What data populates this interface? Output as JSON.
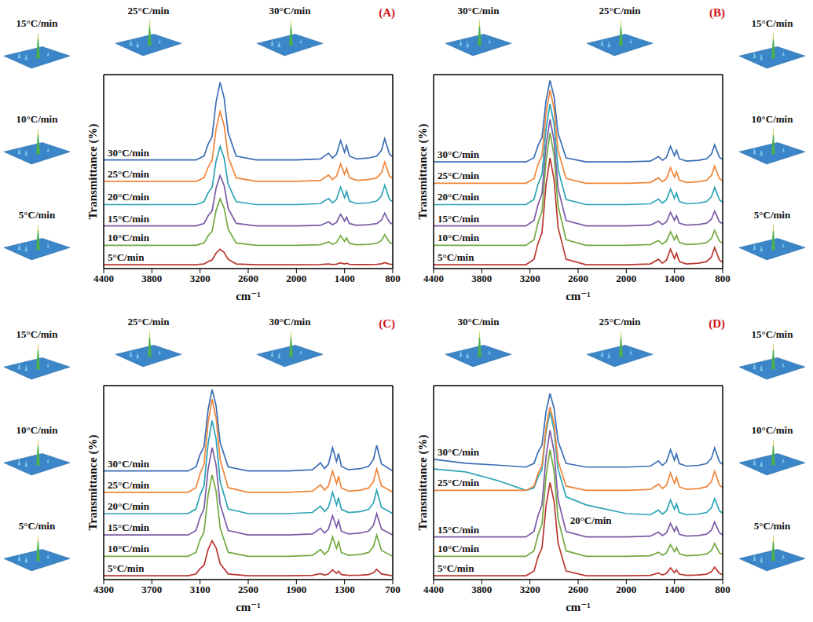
{
  "chart_data": [
    {
      "type": "line",
      "title": "(A)",
      "x_label": "cm⁻¹",
      "y_label": "Transmittance (%)",
      "x": [
        4400,
        4000,
        3600,
        3250,
        3150,
        3100,
        3050,
        3000,
        2950,
        2900,
        2850,
        2750,
        2500,
        2000,
        1700,
        1600,
        1550,
        1500,
        1450,
        1400,
        1375,
        1340,
        1250,
        1100,
        1000,
        940,
        900,
        870,
        840,
        800
      ],
      "xlim": [
        4400,
        800
      ],
      "xticks": [
        4400,
        3800,
        3200,
        2600,
        2000,
        1400,
        800
      ],
      "ylim": [
        0,
        100
      ],
      "tick_labels": "x",
      "series": [
        {
          "name": "5°C/min",
          "color": "#b8372f",
          "values": [
            2,
            2,
            2,
            2,
            2.4,
            3.6,
            4.4,
            8,
            10,
            8.4,
            4.8,
            2.4,
            2,
            2,
            2.1,
            2.4,
            2.1,
            2.3,
            3,
            2.4,
            2.8,
            2.2,
            2.1,
            2.1,
            2.2,
            2.5,
            3.1,
            2.7,
            2.3,
            2.2
          ]
        },
        {
          "name": "10°C/min",
          "color": "#72a93f",
          "values": [
            12,
            12,
            12,
            12,
            13.2,
            16.8,
            19.2,
            30,
            36,
            31.2,
            20.4,
            13.2,
            12,
            12,
            12.3,
            13.8,
            12.5,
            13.5,
            17,
            14,
            15.8,
            13,
            12.3,
            12.5,
            13,
            14.5,
            17.5,
            15.5,
            13.5,
            12.8
          ]
        },
        {
          "name": "15°C/min",
          "color": "#7b5aa6",
          "values": [
            22,
            22,
            22,
            22,
            23.3,
            27.2,
            29.8,
            41.5,
            48,
            42.8,
            31.1,
            23.3,
            22,
            22,
            22.3,
            24.1,
            22.6,
            23.8,
            28,
            24.4,
            26.5,
            23.2,
            22.3,
            22.6,
            23.2,
            25,
            28.6,
            26.2,
            23.8,
            22.9
          ]
        },
        {
          "name": "20°C/min",
          "color": "#2ba3b5",
          "values": [
            33,
            33,
            33,
            33,
            34.5,
            39,
            42,
            55.5,
            63,
            57,
            43.5,
            34.5,
            33,
            33,
            33.5,
            36.2,
            33.9,
            35.7,
            42,
            36.6,
            39.8,
            34.8,
            33.5,
            33.9,
            34.8,
            37.5,
            42.9,
            39.3,
            35.7,
            34.4
          ]
        },
        {
          "name": "25°C/min",
          "color": "#f0863a",
          "values": [
            45,
            45,
            45,
            45,
            46.8,
            52.2,
            55.8,
            72,
            81,
            73.8,
            57.6,
            46.8,
            45,
            45,
            45.5,
            48.2,
            45.9,
            47.7,
            54,
            48.6,
            51.8,
            46.8,
            45.5,
            45.9,
            46.8,
            49.5,
            54.9,
            51.3,
            47.7,
            46.4
          ]
        },
        {
          "name": "30°C/min",
          "color": "#3b6eb5",
          "values": [
            56,
            56,
            56,
            56,
            58,
            64,
            68,
            86,
            96,
            88,
            70,
            58,
            56,
            56,
            56.5,
            59.5,
            57,
            59,
            66,
            60,
            63.5,
            58,
            56.5,
            57,
            58,
            61,
            67,
            63,
            59,
            57.5
          ]
        }
      ],
      "annotations": {
        "insets": [
          "25°C/min",
          "30°C/min"
        ],
        "side_insets": [
          "15°C/min",
          "10°C/min",
          "5°C/min"
        ]
      }
    },
    {
      "type": "line",
      "title": "(B)",
      "x_label": "cm⁻¹",
      "y_label": "Transmittance (%)",
      "x": [
        4400,
        4000,
        3600,
        3250,
        3150,
        3100,
        3050,
        3000,
        2950,
        2900,
        2850,
        2750,
        2500,
        2000,
        1700,
        1600,
        1550,
        1500,
        1450,
        1400,
        1375,
        1340,
        1250,
        1100,
        1000,
        940,
        900,
        870,
        840,
        800
      ],
      "xlim": [
        4400,
        800
      ],
      "xticks": [
        4400,
        3800,
        3200,
        2600,
        2000,
        1400,
        800
      ],
      "ylim": [
        0,
        100
      ],
      "tick_labels": "x",
      "series": [
        {
          "name": "5°C/min",
          "color": "#b8372f",
          "values": [
            2,
            2,
            2,
            2,
            4.8,
            13,
            18.5,
            43.3,
            57,
            46,
            21.3,
            4.8,
            2,
            2,
            2.4,
            4.8,
            2.8,
            4.4,
            10,
            5.2,
            8,
            3.6,
            2.4,
            2.8,
            3.6,
            6,
            10.8,
            7.6,
            4.4,
            3.2
          ]
        },
        {
          "name": "10°C/min",
          "color": "#72a93f",
          "values": [
            12,
            12,
            12,
            12,
            14.9,
            23.6,
            29.4,
            55.5,
            70,
            58.4,
            32.3,
            14.9,
            12,
            12,
            12.4,
            14.5,
            12.7,
            14.1,
            19,
            14.8,
            17.3,
            13.4,
            12.4,
            12.7,
            13.4,
            15.5,
            19.7,
            16.9,
            14.1,
            13.1
          ]
        },
        {
          "name": "15°C/min",
          "color": "#7b5aa6",
          "values": [
            22,
            22,
            22,
            22,
            24.8,
            33,
            38.5,
            63.3,
            77,
            66,
            41.3,
            24.8,
            22,
            22,
            22.4,
            24.5,
            22.7,
            24.1,
            29,
            24.8,
            27.3,
            23.4,
            22.4,
            22.7,
            23.4,
            25.5,
            29.7,
            26.9,
            24.1,
            23.1
          ]
        },
        {
          "name": "20°C/min",
          "color": "#2ba3b5",
          "values": [
            33,
            33,
            33,
            33,
            35.6,
            43.4,
            48.6,
            72,
            85,
            74.6,
            51.2,
            35.6,
            33,
            33,
            33.4,
            35.8,
            33.8,
            35.4,
            41,
            36.2,
            39,
            34.6,
            33.4,
            33.8,
            34.6,
            37,
            41.8,
            38.6,
            35.4,
            34.2
          ]
        },
        {
          "name": "25°C/min",
          "color": "#f0863a",
          "values": [
            44,
            44,
            44,
            44,
            46.4,
            53.6,
            58.4,
            80,
            92,
            82.4,
            60.8,
            46.4,
            44,
            44,
            44.4,
            46.8,
            44.8,
            46.4,
            52,
            47.2,
            50,
            45.6,
            44.4,
            44.8,
            45.6,
            48,
            52.8,
            49.6,
            46.4,
            45.2
          ]
        },
        {
          "name": "30°C/min",
          "color": "#3b6eb5",
          "values": [
            55,
            55,
            55,
            55,
            57.1,
            63.4,
            67.6,
            86.5,
            97,
            88.6,
            69.7,
            57.1,
            55,
            55,
            55.4,
            57.8,
            55.8,
            57.4,
            63,
            58.2,
            61,
            56.6,
            55.4,
            55.8,
            56.6,
            59,
            63.8,
            60.6,
            57.4,
            56.2
          ]
        }
      ],
      "annotations": {
        "insets": [
          "30°C/min",
          "25°C/min"
        ],
        "side_insets": [
          "15°C/min",
          "10°C/min",
          "5°C/min"
        ]
      }
    },
    {
      "type": "line",
      "title": "(C)",
      "x_label": "cm⁻¹",
      "y_label": "Transmittance (%)",
      "x": [
        4300,
        4000,
        3600,
        3250,
        3150,
        3100,
        3050,
        3000,
        2950,
        2900,
        2850,
        2750,
        2500,
        2000,
        1700,
        1600,
        1550,
        1500,
        1450,
        1400,
        1375,
        1340,
        1250,
        1100,
        1000,
        940,
        900,
        870,
        840,
        700
      ],
      "xlim": [
        4300,
        700
      ],
      "xticks": [
        4300,
        3700,
        3100,
        2500,
        1900,
        1300,
        700
      ],
      "ylim": [
        0,
        100
      ],
      "tick_labels": "x",
      "series": [
        {
          "name": "5°C/min",
          "color": "#b8372f",
          "values": [
            2,
            2,
            2,
            2,
            2.9,
            5.6,
            7.4,
            15.5,
            20,
            16.4,
            8.3,
            2.9,
            2,
            2,
            2.2,
            3.1,
            2.3,
            2.9,
            5,
            3.2,
            4.3,
            2.6,
            2.2,
            2.3,
            2.6,
            3.5,
            5.3,
            4.1,
            2.9,
            2
          ]
        },
        {
          "name": "10°C/min",
          "color": "#72a93f",
          "values": [
            12,
            12,
            12,
            12,
            14.1,
            20.4,
            24.6,
            43.5,
            54,
            45.6,
            26.7,
            14.1,
            12,
            12,
            12.5,
            15.5,
            13,
            15,
            22,
            16,
            19.5,
            14,
            12.5,
            13,
            14,
            17,
            23,
            19,
            15,
            12
          ]
        },
        {
          "name": "15°C/min",
          "color": "#7b5aa6",
          "values": [
            23,
            23,
            23,
            23,
            25.3,
            32,
            36.5,
            56.8,
            68,
            59,
            38.8,
            25.3,
            23,
            23,
            23.5,
            26.5,
            24,
            26,
            33,
            27,
            30.5,
            25,
            23.5,
            24,
            25,
            28,
            34,
            30,
            26,
            23
          ]
        },
        {
          "name": "20°C/min",
          "color": "#2ba3b5",
          "values": [
            34,
            34,
            34,
            34,
            36.4,
            43.6,
            48.4,
            70,
            82,
            72.4,
            50.8,
            36.4,
            34,
            34,
            34.6,
            37.9,
            35.1,
            37.3,
            45,
            38.4,
            42.3,
            36.2,
            34.6,
            35.1,
            36.2,
            39.5,
            46.1,
            41.7,
            37.3,
            34
          ]
        },
        {
          "name": "25°C/min",
          "color": "#f0863a",
          "values": [
            45,
            45,
            45,
            45,
            47.4,
            54.6,
            59.4,
            81,
            93,
            83.4,
            61.8,
            47.4,
            45,
            45,
            45.6,
            48.9,
            46.1,
            48.3,
            56,
            49.4,
            53.3,
            47.2,
            45.6,
            46.1,
            47.2,
            50.5,
            57.1,
            52.7,
            48.3,
            45
          ]
        },
        {
          "name": "30°C/min",
          "color": "#3b6eb5",
          "values": [
            56,
            56,
            56,
            56,
            58.1,
            64.4,
            68.6,
            87.5,
            98,
            89.6,
            70.7,
            58.1,
            56,
            56,
            56.6,
            60.2,
            57.2,
            59.6,
            68,
            60.8,
            65,
            58.4,
            56.6,
            57.2,
            58.4,
            62,
            69.2,
            64.4,
            59.6,
            56
          ]
        }
      ],
      "annotations": {
        "insets": [
          "25°C/min",
          "30°C/min"
        ],
        "side_insets": [
          "15°C/min",
          "10°C/min",
          "5°C/min"
        ]
      }
    },
    {
      "type": "line",
      "title": "(D)",
      "x_label": "cm⁻¹",
      "y_label": "Transmittance (%)",
      "x": [
        4400,
        4000,
        3600,
        3250,
        3150,
        3100,
        3050,
        3000,
        2950,
        2900,
        2850,
        2750,
        2500,
        2000,
        1700,
        1600,
        1550,
        1500,
        1450,
        1400,
        1375,
        1340,
        1250,
        1100,
        1000,
        940,
        900,
        870,
        840,
        800
      ],
      "xlim": [
        4400,
        800
      ],
      "xticks": [
        4400,
        3800,
        3200,
        2600,
        2000,
        1400,
        800
      ],
      "ylim": [
        0,
        100
      ],
      "tick_labels": "x",
      "series": [
        {
          "name": "5°C/min",
          "color": "#b8372f",
          "values": [
            2,
            2,
            2,
            2,
            4.4,
            11.6,
            16.4,
            38,
            50,
            40.4,
            18.8,
            4.4,
            2,
            2,
            2.2,
            3.4,
            2.4,
            3.2,
            6,
            3.6,
            5,
            2.8,
            2.2,
            2.4,
            2.8,
            4,
            6.4,
            4.8,
            3.2,
            2.6
          ]
        },
        {
          "name": "10°C/min",
          "color": "#72a93f",
          "values": [
            12,
            12,
            12,
            12,
            14.8,
            23,
            28.5,
            53.3,
            67,
            56,
            31.3,
            14.8,
            12,
            12,
            12.3,
            14.1,
            12.6,
            13.8,
            18,
            14.4,
            16.5,
            13.2,
            12.3,
            12.6,
            13.2,
            15,
            18.6,
            16.2,
            13.8,
            12.9
          ]
        },
        {
          "name": "15°C/min",
          "color": "#7b5aa6",
          "values": [
            22,
            22,
            22,
            22,
            24.8,
            33,
            38.5,
            63.3,
            77,
            66,
            41.3,
            24.8,
            22,
            22,
            22.4,
            24.5,
            22.7,
            24.1,
            29,
            24.8,
            27.3,
            23.4,
            22.4,
            22.7,
            23.4,
            25.5,
            29.7,
            26.9,
            24.1,
            23.1
          ]
        },
        {
          "name": "20°C/min",
          "color": "#2ba3b5",
          "values": [
            57,
            55.5,
            51,
            46,
            47.2,
            52.8,
            56.7,
            76,
            86.5,
            77.2,
            56.9,
            42.7,
            38.5,
            34,
            33.4,
            35.8,
            33.8,
            35.4,
            41,
            36.2,
            39,
            34.6,
            33.4,
            33.8,
            34.6,
            37,
            41.8,
            38.6,
            35.4,
            34.2
          ]
        },
        {
          "name": "25°C/min",
          "color": "#f0863a",
          "values": [
            46,
            46,
            46,
            46,
            48.2,
            54.6,
            58.9,
            78.3,
            89,
            80.4,
            61.1,
            48.2,
            46,
            46,
            46.5,
            49.2,
            46.9,
            48.7,
            55,
            49.6,
            52.8,
            47.8,
            46.5,
            46.9,
            47.8,
            50.5,
            55.9,
            52.3,
            48.7,
            47.4
          ]
        },
        {
          "name": "30°C/min",
          "color": "#3b6eb5",
          "values": [
            62,
            60,
            59,
            58,
            59.9,
            65.6,
            69.4,
            86.5,
            96,
            88.4,
            71.3,
            59.9,
            58,
            58,
            58.5,
            61.2,
            58.9,
            60.7,
            67,
            61.6,
            64.8,
            59.8,
            58.5,
            58.9,
            59.8,
            62.5,
            67.9,
            64.3,
            60.7,
            59.4
          ]
        }
      ],
      "annotations": {
        "insets": [
          "30°C/min",
          "25°C/min"
        ],
        "side_insets": [
          "15°C/min",
          "10°C/min",
          "5°C/min"
        ]
      }
    }
  ]
}
